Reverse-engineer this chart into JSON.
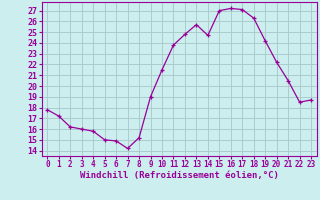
{
  "x": [
    0,
    1,
    2,
    3,
    4,
    5,
    6,
    7,
    8,
    9,
    10,
    11,
    12,
    13,
    14,
    15,
    16,
    17,
    18,
    19,
    20,
    21,
    22,
    23
  ],
  "y": [
    17.8,
    17.2,
    16.2,
    16.0,
    15.8,
    15.0,
    14.9,
    14.2,
    15.2,
    19.0,
    21.5,
    23.8,
    24.8,
    25.7,
    24.7,
    27.0,
    27.2,
    27.1,
    26.3,
    24.2,
    22.2,
    20.5,
    18.5,
    18.7
  ],
  "line_color": "#990099",
  "marker": "+",
  "bg_color": "#cceeee",
  "grid_color": "#aacccc",
  "xlabel": "Windchill (Refroidissement éolien,°C)",
  "xlabel_color": "#990099",
  "yticks": [
    14,
    15,
    16,
    17,
    18,
    19,
    20,
    21,
    22,
    23,
    24,
    25,
    26,
    27
  ],
  "xticks": [
    0,
    1,
    2,
    3,
    4,
    5,
    6,
    7,
    8,
    9,
    10,
    11,
    12,
    13,
    14,
    15,
    16,
    17,
    18,
    19,
    20,
    21,
    22,
    23
  ],
  "ylim": [
    13.5,
    27.8
  ],
  "xlim": [
    -0.5,
    23.5
  ],
  "tick_color": "#990099",
  "spine_color": "#990099",
  "xlabel_fontsize": 6.5,
  "ytick_fontsize": 6.0,
  "xtick_fontsize": 5.5
}
